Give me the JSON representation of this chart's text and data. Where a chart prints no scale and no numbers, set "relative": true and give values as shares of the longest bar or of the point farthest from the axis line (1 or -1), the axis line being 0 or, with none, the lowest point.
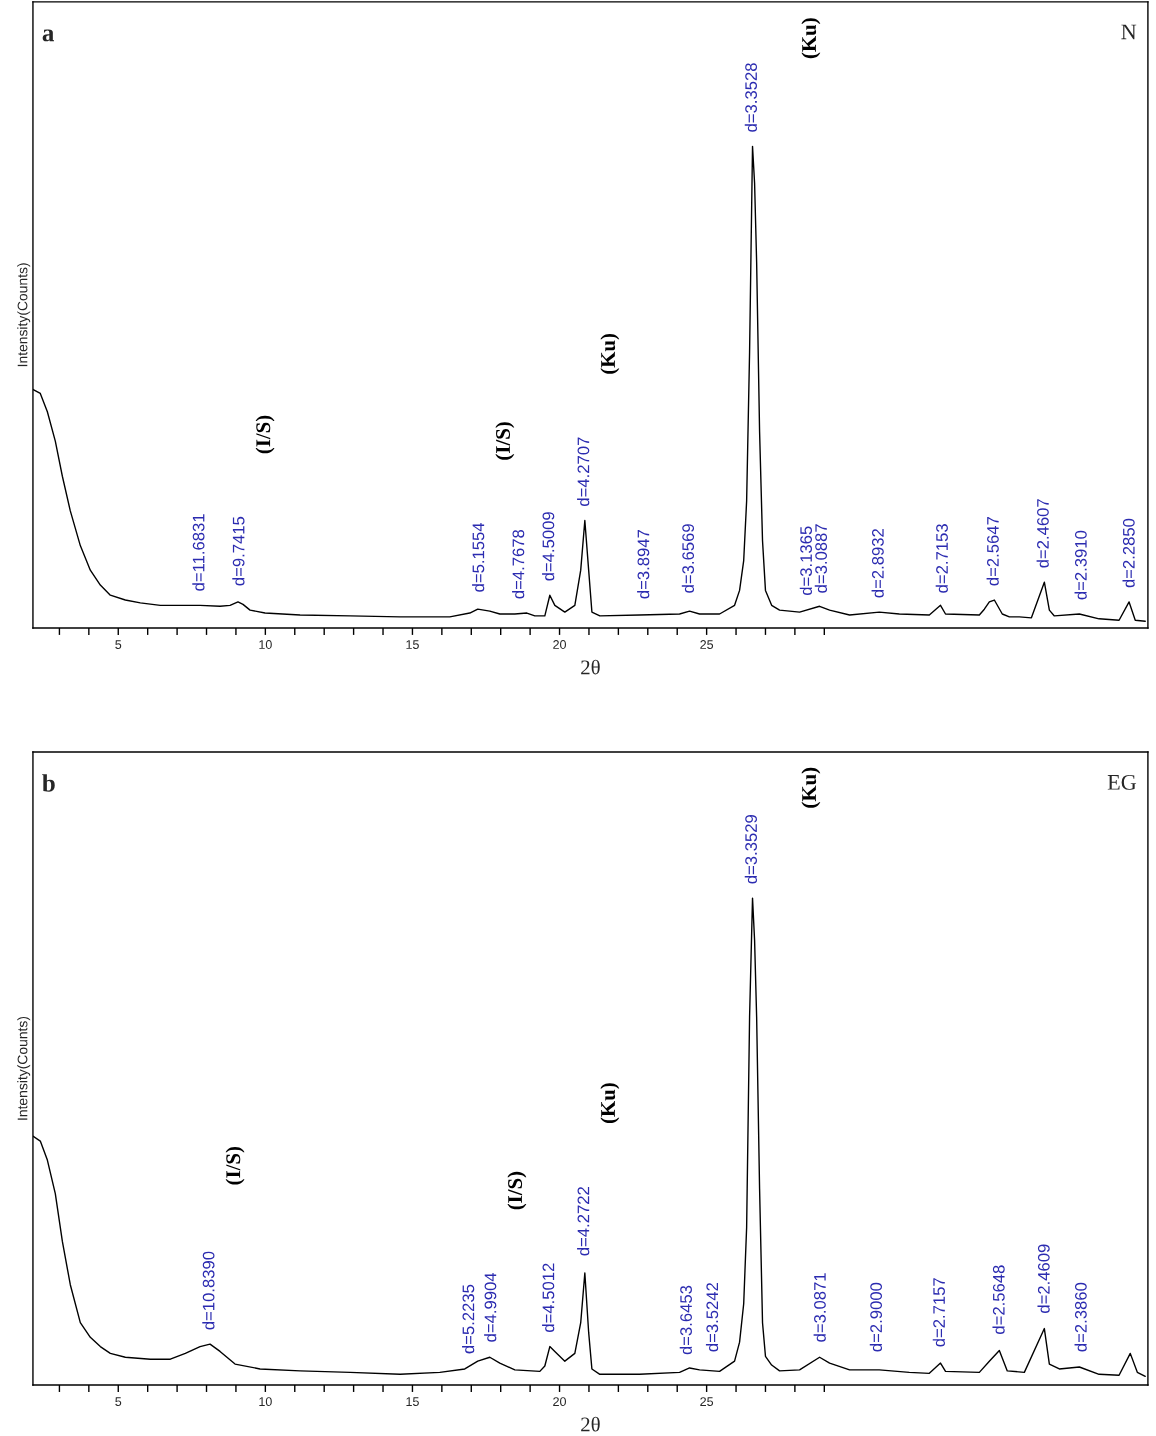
{
  "chart_data": [
    {
      "type": "line",
      "relative": true,
      "xlabel": "2θ",
      "ylabel": "Intensity(Counts)",
      "xlim": [
        2.1,
        40
      ],
      "xticks": [
        {
          "value": 3,
          "label": null
        },
        {
          "value": 4,
          "label": null
        },
        5,
        {
          "value": 6,
          "label": null
        },
        {
          "value": 7,
          "label": null
        },
        {
          "value": 8,
          "label": null
        },
        {
          "value": 9,
          "label": null
        },
        10,
        {
          "value": 11,
          "label": null
        },
        {
          "value": 12,
          "label": null
        },
        {
          "value": 13,
          "label": null
        },
        {
          "value": 14,
          "label": null
        },
        15,
        {
          "value": 16,
          "label": null
        },
        {
          "value": 17,
          "label": null
        },
        {
          "value": 18,
          "label": null
        },
        {
          "value": 19,
          "label": null
        },
        20,
        {
          "value": 21,
          "label": null
        },
        {
          "value": 22,
          "label": null
        },
        {
          "value": 23,
          "label": null
        },
        {
          "value": 24,
          "label": null
        },
        25,
        {
          "value": 26,
          "label": null
        },
        {
          "value": 27,
          "label": null
        },
        {
          "value": 28,
          "label": null
        },
        {
          "value": 29,
          "label": null
        }
      ],
      "series": [
        {
          "color": "#000000",
          "x": [
            2.11,
            2.35,
            2.59,
            2.86,
            3.1,
            3.37,
            3.71,
            4.05,
            4.39,
            4.73,
            5.24,
            5.75,
            6.43,
            7.78,
            8.46,
            8.8,
            9.07,
            9.24,
            9.48,
            9.99,
            11.18,
            12.88,
            14.58,
            16.27,
            16.95,
            17.22,
            17.63,
            17.97,
            18.48,
            18.89,
            19.16,
            19.5,
            19.67,
            19.84,
            20.18,
            20.52,
            20.72,
            20.86,
            20.99,
            21.1,
            21.37,
            22.72,
            24.08,
            24.42,
            24.76,
            25.44,
            25.95,
            26.12,
            26.26,
            26.36,
            26.46,
            26.56,
            26.63,
            26.7,
            26.8,
            26.9,
            27.0,
            27.21,
            27.48,
            28.16,
            28.84,
            29.18,
            29.86,
            30.87,
            31.55,
            32.57,
            32.95,
            33.12,
            34.27,
            34.44,
            34.61,
            34.78,
            35.05,
            35.29,
            35.63,
            36.04,
            36.48,
            36.65,
            36.82,
            37.67,
            38.34,
            39.02,
            39.36,
            39.57,
            39.91
          ],
          "values": [
            0.495,
            0.487,
            0.449,
            0.388,
            0.315,
            0.243,
            0.171,
            0.12,
            0.089,
            0.068,
            0.058,
            0.052,
            0.047,
            0.047,
            0.045,
            0.047,
            0.054,
            0.049,
            0.037,
            0.031,
            0.027,
            0.025,
            0.023,
            0.023,
            0.031,
            0.039,
            0.035,
            0.029,
            0.029,
            0.031,
            0.025,
            0.025,
            0.068,
            0.047,
            0.033,
            0.047,
            0.12,
            0.223,
            0.12,
            0.033,
            0.025,
            0.027,
            0.029,
            0.035,
            0.029,
            0.029,
            0.047,
            0.078,
            0.14,
            0.264,
            0.573,
            1,
            0.924,
            0.759,
            0.408,
            0.181,
            0.078,
            0.047,
            0.037,
            0.033,
            0.045,
            0.037,
            0.027,
            0.033,
            0.029,
            0.027,
            0.047,
            0.029,
            0.027,
            0.039,
            0.054,
            0.058,
            0.029,
            0.023,
            0.023,
            0.021,
            0.095,
            0.037,
            0.025,
            0.029,
            0.019,
            0.016,
            0.054,
            0.016,
            0.014
          ]
        }
      ],
      "annotations": [
        "a",
        "N",
        {
          "text": "d=11.6831",
          "x": 7.78,
          "y": 0.047
        },
        {
          "text": "d=9.7415",
          "x": 9.14,
          "y": 0.058
        },
        "(I/S)",
        {
          "text": "d=5.1554",
          "x": 17.29,
          "y": 0.045
        },
        "(I/S)",
        {
          "text": "d=4.7678",
          "x": 18.65,
          "y": 0.031
        },
        {
          "text": "d=4.5009",
          "x": 19.67,
          "y": 0.068
        },
        {
          "text": "d=4.2707",
          "x": 20.86,
          "y": 0.223
        },
        "(Ku)",
        {
          "text": "d=3.8947",
          "x": 22.9,
          "y": 0.031
        },
        {
          "text": "d=3.6569",
          "x": 24.42,
          "y": 0.043
        },
        {
          "text": "d=3.3528",
          "x": 26.56,
          "y": 1.0
        },
        "(Ku)",
        {
          "text": "d=3.1365",
          "x": 28.43,
          "y": 0.038
        },
        {
          "text": "d=3.0887",
          "x": 28.94,
          "y": 0.043
        },
        {
          "text": "d=2.8932",
          "x": 30.87,
          "y": 0.033
        },
        {
          "text": "d=2.7153",
          "x": 33.05,
          "y": 0.043
        },
        {
          "text": "d=2.5647",
          "x": 34.78,
          "y": 0.058
        },
        {
          "text": "d=2.4607",
          "x": 36.48,
          "y": 0.095
        },
        {
          "text": "d=2.3910",
          "x": 37.77,
          "y": 0.029
        },
        {
          "text": "d=2.2850",
          "x": 39.4,
          "y": 0.054
        }
      ]
    },
    {
      "type": "line",
      "relative": true,
      "xlabel": "2θ",
      "ylabel": "Intensity(Counts)",
      "xlim": [
        2.1,
        40
      ],
      "xticks": [
        {
          "value": 3,
          "label": null
        },
        {
          "value": 4,
          "label": null
        },
        5,
        {
          "value": 6,
          "label": null
        },
        {
          "value": 7,
          "label": null
        },
        {
          "value": 8,
          "label": null
        },
        {
          "value": 9,
          "label": null
        },
        10,
        {
          "value": 11,
          "label": null
        },
        {
          "value": 12,
          "label": null
        },
        {
          "value": 13,
          "label": null
        },
        {
          "value": 14,
          "label": null
        },
        15,
        {
          "value": 16,
          "label": null
        },
        {
          "value": 17,
          "label": null
        },
        {
          "value": 18,
          "label": null
        },
        {
          "value": 19,
          "label": null
        },
        20,
        {
          "value": 21,
          "label": null
        },
        {
          "value": 22,
          "label": null
        },
        {
          "value": 23,
          "label": null
        },
        {
          "value": 24,
          "label": null
        },
        25,
        {
          "value": 26,
          "label": null
        },
        {
          "value": 27,
          "label": null
        },
        {
          "value": 28,
          "label": null
        },
        {
          "value": 29,
          "label": null
        }
      ],
      "series": [
        {
          "color": "#000000",
          "x": [
            2.11,
            2.35,
            2.59,
            2.86,
            3.1,
            3.37,
            3.71,
            4.05,
            4.39,
            4.73,
            5.24,
            6.09,
            6.77,
            7.28,
            7.78,
            8.12,
            8.46,
            8.97,
            9.82,
            11.18,
            12.88,
            14.58,
            15.93,
            16.78,
            17.22,
            17.63,
            17.97,
            18.48,
            19.33,
            19.5,
            19.67,
            19.84,
            20.18,
            20.52,
            20.72,
            20.86,
            20.99,
            21.1,
            21.37,
            22.72,
            24.08,
            24.42,
            24.76,
            25.44,
            25.95,
            26.12,
            26.26,
            26.36,
            26.46,
            26.56,
            26.63,
            26.7,
            26.8,
            26.9,
            27.0,
            27.21,
            27.48,
            28.16,
            28.84,
            29.18,
            29.86,
            30.87,
            31.89,
            32.57,
            32.95,
            33.12,
            34.27,
            34.61,
            34.95,
            35.22,
            35.8,
            36.48,
            36.65,
            36.99,
            37.67,
            38.34,
            39.02,
            39.4,
            39.64,
            39.91
          ],
          "values": [
            0.511,
            0.501,
            0.462,
            0.393,
            0.295,
            0.206,
            0.128,
            0.098,
            0.079,
            0.065,
            0.057,
            0.053,
            0.053,
            0.065,
            0.079,
            0.084,
            0.069,
            0.043,
            0.033,
            0.029,
            0.026,
            0.022,
            0.026,
            0.033,
            0.049,
            0.057,
            0.045,
            0.031,
            0.028,
            0.039,
            0.079,
            0.069,
            0.049,
            0.065,
            0.128,
            0.23,
            0.108,
            0.033,
            0.022,
            0.022,
            0.026,
            0.035,
            0.031,
            0.028,
            0.049,
            0.088,
            0.167,
            0.324,
            0.756,
            1,
            0.914,
            0.756,
            0.403,
            0.128,
            0.059,
            0.041,
            0.029,
            0.031,
            0.057,
            0.045,
            0.031,
            0.031,
            0.026,
            0.024,
            0.045,
            0.028,
            0.026,
            0.049,
            0.071,
            0.029,
            0.026,
            0.116,
            0.043,
            0.033,
            0.037,
            0.022,
            0.02,
            0.065,
            0.026,
            0.018
          ]
        }
      ],
      "annotations": [
        "b",
        "EG",
        {
          "text": "d=10.8390",
          "x": 8.12,
          "y": 0.084
        },
        "(I/S)",
        {
          "text": "d=5.2235",
          "x": 16.95,
          "y": 0.035
        },
        {
          "text": "d=4.9904",
          "x": 17.7,
          "y": 0.059
        },
        "(I/S)",
        {
          "text": "d=4.5012",
          "x": 19.67,
          "y": 0.079
        },
        {
          "text": "d=4.2722",
          "x": 20.86,
          "y": 0.236
        },
        "(Ku)",
        {
          "text": "d=3.6453",
          "x": 24.35,
          "y": 0.033
        },
        {
          "text": "d=3.5242",
          "x": 25.24,
          "y": 0.039
        },
        {
          "text": "d=3.3529",
          "x": 26.56,
          "y": 1.0
        },
        "(Ku)",
        {
          "text": "d=3.0871",
          "x": 28.9,
          "y": 0.059
        },
        {
          "text": "d=2.9000",
          "x": 30.81,
          "y": 0.039
        },
        {
          "text": "d=2.7157",
          "x": 32.95,
          "y": 0.049
        },
        {
          "text": "d=2.5648",
          "x": 34.98,
          "y": 0.075
        },
        {
          "text": "d=2.4609",
          "x": 36.51,
          "y": 0.118
        },
        {
          "text": "d=2.3860",
          "x": 37.77,
          "y": 0.039
        }
      ]
    }
  ]
}
